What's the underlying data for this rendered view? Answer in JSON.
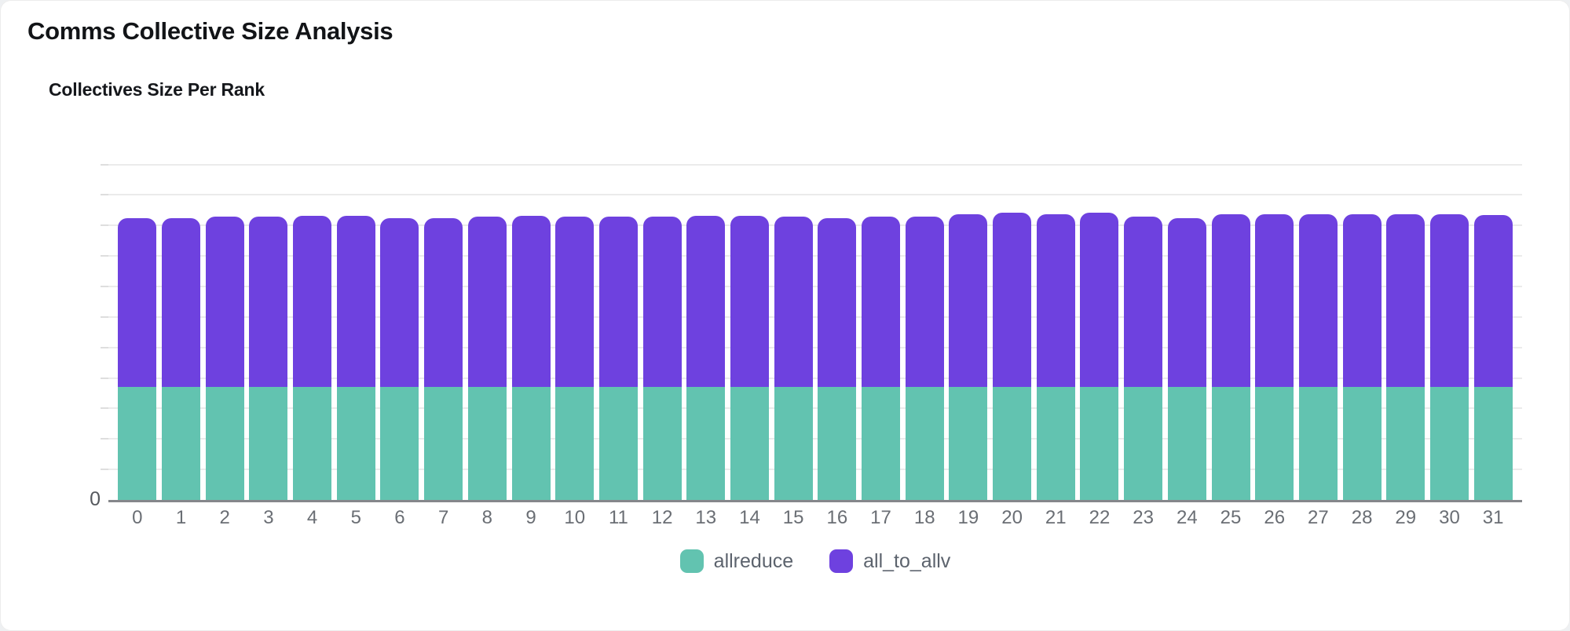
{
  "page": {
    "title": "Comms Collective Size Analysis"
  },
  "chart_data": {
    "type": "bar",
    "stacked": true,
    "title": "Collectives Size Per Rank",
    "xlabel": "",
    "ylabel": "",
    "categories": [
      "0",
      "1",
      "2",
      "3",
      "4",
      "5",
      "6",
      "7",
      "8",
      "9",
      "10",
      "11",
      "12",
      "13",
      "14",
      "15",
      "16",
      "17",
      "18",
      "19",
      "20",
      "21",
      "22",
      "23",
      "24",
      "25",
      "26",
      "27",
      "28",
      "29",
      "30",
      "31"
    ],
    "y_tick_labels": [
      "0"
    ],
    "ylim": [
      0,
      12
    ],
    "gridline_step": 1,
    "gridline_count": 11,
    "grid": true,
    "legend_position": "bottom",
    "series": [
      {
        "name": "allreduce",
        "color": "#62C3B0",
        "values": [
          3.7,
          3.7,
          3.7,
          3.7,
          3.7,
          3.7,
          3.7,
          3.7,
          3.7,
          3.7,
          3.7,
          3.7,
          3.7,
          3.7,
          3.7,
          3.7,
          3.7,
          3.7,
          3.7,
          3.7,
          3.7,
          3.7,
          3.7,
          3.7,
          3.7,
          3.7,
          3.7,
          3.7,
          3.7,
          3.7,
          3.7,
          3.7
        ]
      },
      {
        "name": "all_to_allv",
        "color": "#6E41DF",
        "values": [
          5.55,
          5.55,
          5.58,
          5.58,
          5.61,
          5.61,
          5.55,
          5.55,
          5.58,
          5.61,
          5.58,
          5.58,
          5.58,
          5.61,
          5.61,
          5.58,
          5.55,
          5.58,
          5.58,
          5.68,
          5.71,
          5.68,
          5.71,
          5.58,
          5.55,
          5.68,
          5.68,
          5.68,
          5.68,
          5.68,
          5.68,
          5.63
        ]
      }
    ]
  },
  "colors": {
    "axis_line": "#85878B",
    "gridline": "#EBEBEB",
    "tick": "#DEDEDE",
    "x_label": "#6A6E74",
    "y_label": "#55585D",
    "legend_text": "#5C636D",
    "title_text": "#121417",
    "background": "#FFFFFF"
  }
}
